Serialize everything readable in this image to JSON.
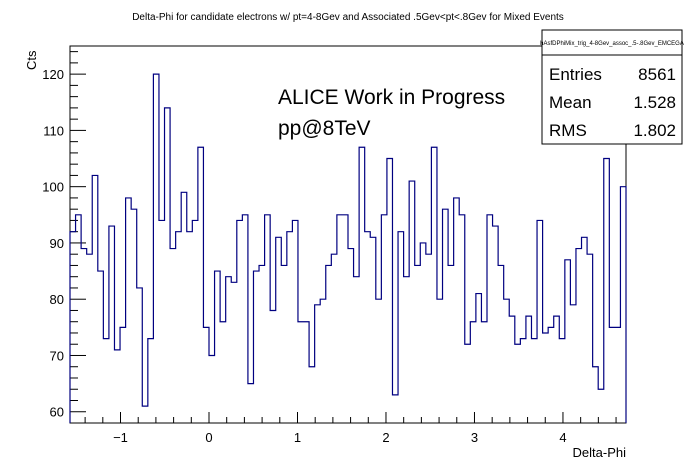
{
  "chart_data": {
    "type": "step-histogram",
    "title": "Delta-Phi for candidate electrons w/ pt=4-8Gev and Associated .5Gev<pt<.8Gev for Mixed Events",
    "xlabel": "Delta-Phi",
    "ylabel": "Cts",
    "xlim": [
      -1.5708,
      4.7124
    ],
    "ylim": [
      58,
      125
    ],
    "x_ticks": [
      -1,
      0,
      1,
      2,
      3,
      4
    ],
    "y_ticks": [
      60,
      70,
      80,
      90,
      100,
      110,
      120
    ],
    "line_color": "#000080",
    "bin_count": 100,
    "values": [
      92,
      95,
      89,
      88,
      102,
      85,
      73,
      93,
      71,
      75,
      98,
      96,
      82,
      61,
      73,
      120,
      94,
      114,
      89,
      92,
      99,
      92,
      94,
      107,
      75,
      70,
      85,
      76,
      84,
      83,
      94,
      95,
      65,
      85,
      86,
      95,
      78,
      91,
      86,
      92,
      94,
      76,
      76,
      68,
      79,
      80,
      86,
      88,
      95,
      95,
      89,
      84,
      107,
      92,
      91,
      80,
      95,
      105,
      63,
      92,
      84,
      101,
      86,
      90,
      88,
      107,
      80,
      96,
      86,
      98,
      95,
      72,
      76,
      81,
      76,
      95,
      93,
      86,
      80,
      77,
      72,
      73,
      77,
      73,
      94,
      74,
      75,
      77,
      73,
      87,
      79,
      89,
      91,
      88,
      68,
      64,
      105,
      75,
      75,
      100
    ],
    "annotations": [
      "ALICE Work in Progress",
      "pp@8TeV"
    ],
    "stats_box": {
      "name": "hAsfDPhiMix_trig_4-8Gev_assoc_.5-.8Gev_EMCEGA",
      "rows": [
        {
          "label": "Entries",
          "value": "8561"
        },
        {
          "label": "Mean",
          "value": "1.528"
        },
        {
          "label": "RMS",
          "value": "1.802"
        }
      ]
    },
    "grid": false,
    "legend": "none"
  }
}
